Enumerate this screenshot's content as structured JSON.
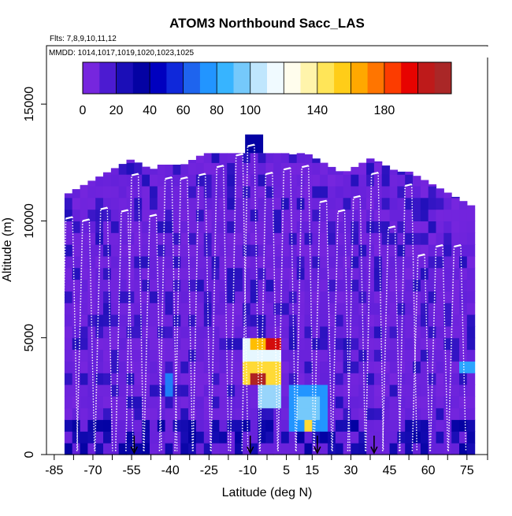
{
  "chart_data": {
    "type": "heatmap",
    "title": "ATOM3 Northbound Sacc_LAS",
    "subtitle": "Flts: 7,8,9,10,11,12",
    "inset_label": "MMDD: 1014,1017,1019,1020,1023,1025",
    "xlabel": "Latitude (deg N)",
    "ylabel": "Altitude (m)",
    "x_ticks": [
      "-85",
      "-70",
      "-55",
      "-40",
      "-25",
      "-10",
      "5",
      "15",
      "30",
      "45",
      "60",
      "75"
    ],
    "y_ticks": [
      "0",
      "5000",
      "10000",
      "15000"
    ],
    "xlim": [
      -88,
      83
    ],
    "ylim": [
      0,
      17500
    ],
    "colorbar": {
      "range": [
        0,
        220
      ],
      "ticks": [
        "0",
        "20",
        "40",
        "60",
        "80",
        "100",
        "140",
        "180"
      ],
      "colors": [
        "#8a2be2",
        "#5a1ed8",
        "#1c0fb8",
        "#0000a0",
        "#0000cd",
        "#1e4fe6",
        "#1e90ff",
        "#38b6ff",
        "#87cefa",
        "#e6f7ff",
        "#ffffff",
        "#fff5b0",
        "#ffe34a",
        "#ffc300",
        "#ff8c00",
        "#ff4500",
        "#e60000",
        "#b22222",
        "#a52a2a"
      ]
    },
    "arrow_latitudes": [
      -54,
      -9,
      17,
      39
    ],
    "profile_tops": [
      {
        "lat": -80.5,
        "alt": 10100
      },
      {
        "lat": -74.0,
        "alt": 10000
      },
      {
        "lat": -67.0,
        "alt": 10500
      },
      {
        "lat": -59.0,
        "alt": 10400
      },
      {
        "lat": -55.0,
        "alt": 11950
      },
      {
        "lat": -48.0,
        "alt": 10200
      },
      {
        "lat": -42.0,
        "alt": 11800
      },
      {
        "lat": -36.0,
        "alt": 11800
      },
      {
        "lat": -29.0,
        "alt": 11950
      },
      {
        "lat": -22.0,
        "alt": 12300
      },
      {
        "lat": -14.5,
        "alt": 12800
      },
      {
        "lat": -10.0,
        "alt": 13200
      },
      {
        "lat": -3.0,
        "alt": 12000
      },
      {
        "lat": 4.0,
        "alt": 12200
      },
      {
        "lat": 11.0,
        "alt": 12300
      },
      {
        "lat": 18.0,
        "alt": 10800
      },
      {
        "lat": 25.0,
        "alt": 10400
      },
      {
        "lat": 31.0,
        "alt": 11000
      },
      {
        "lat": 38.0,
        "alt": 12000
      },
      {
        "lat": 44.5,
        "alt": 9700
      },
      {
        "lat": 51.0,
        "alt": 11500
      },
      {
        "lat": 56.0,
        "alt": 8500
      },
      {
        "lat": 63.0,
        "alt": 8900
      },
      {
        "lat": 70.0,
        "alt": 8900
      }
    ],
    "enhanced_patches": [
      {
        "lat0": -14,
        "lat1": 3,
        "alt0": 4000,
        "alt1": 5000,
        "value": 110
      },
      {
        "lat0": -10,
        "lat1": 0,
        "alt0": 4200,
        "alt1": 4800,
        "value": 160
      },
      {
        "lat0": -14,
        "lat1": 2,
        "alt0": 3000,
        "alt1": 3600,
        "value": 150
      },
      {
        "lat0": -9,
        "lat1": -5,
        "alt0": 3000,
        "alt1": 3500,
        "value": 210
      },
      {
        "lat0": -3,
        "lat1": 1,
        "alt0": 4400,
        "alt1": 4800,
        "value": 200
      },
      {
        "lat0": -8,
        "lat1": 1,
        "alt0": 1900,
        "alt1": 2900,
        "value": 100
      },
      {
        "lat0": 6,
        "lat1": 20,
        "alt0": 1000,
        "alt1": 2900,
        "value": 75
      },
      {
        "lat0": 9,
        "lat1": 17,
        "alt0": 1200,
        "alt1": 2500,
        "value": 95
      },
      {
        "lat0": 12,
        "lat1": 15,
        "alt0": 1000,
        "alt1": 1500,
        "value": 150
      },
      {
        "lat0": -10,
        "lat1": 0,
        "alt0": 3600,
        "alt1": 4000,
        "value": 85
      },
      {
        "lat0": -44,
        "lat1": -39,
        "alt0": 2500,
        "alt1": 3500,
        "value": 70
      },
      {
        "lat0": 71,
        "lat1": 78,
        "alt0": 3500,
        "alt1": 4000,
        "value": 80
      }
    ]
  }
}
